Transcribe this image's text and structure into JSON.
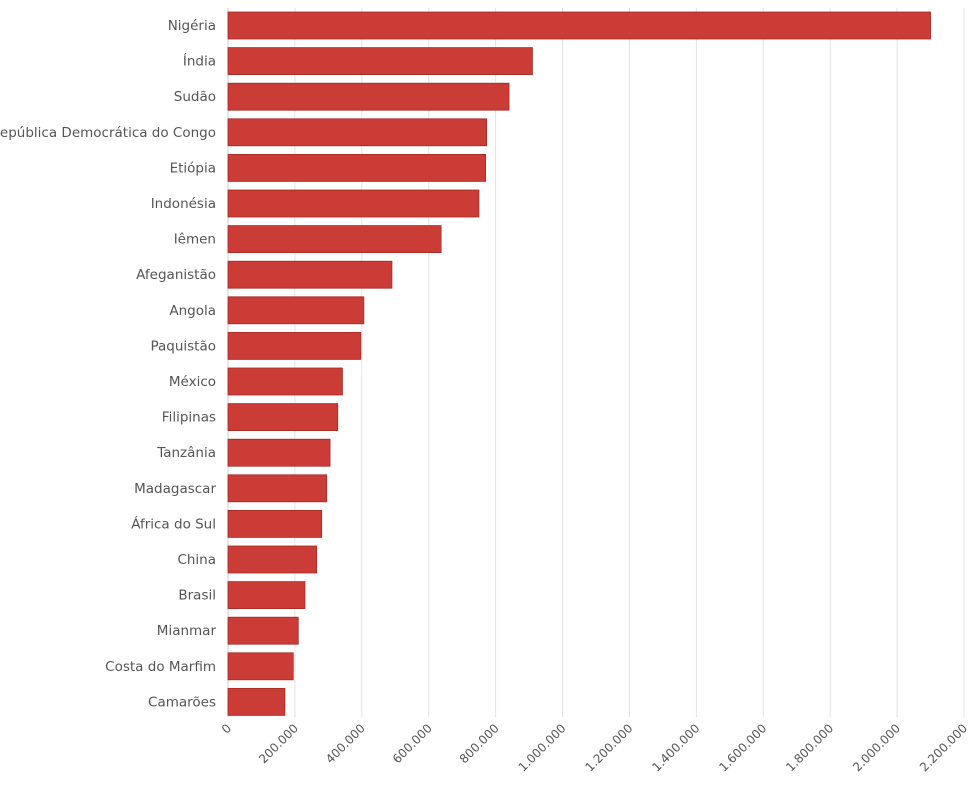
{
  "chart_data": {
    "type": "bar",
    "orientation": "horizontal",
    "title": "",
    "xlabel": "",
    "ylabel": "",
    "categories": [
      "Nigéria",
      "Índia",
      "Sudão",
      "República Democrática do Congo",
      "Etiópia",
      "Indonésia",
      "Iêmen",
      "Afeganistão",
      "Angola",
      "Paquistão",
      "México",
      "Filipinas",
      "Tanzânia",
      "Madagascar",
      "África do Sul",
      "China",
      "Brasil",
      "Mianmar",
      "Costa do Marfim",
      "Camarões"
    ],
    "values": [
      2100000,
      910000,
      840000,
      773000,
      770000,
      750000,
      637000,
      490000,
      406000,
      397000,
      342000,
      328000,
      305000,
      295000,
      280000,
      265000,
      230000,
      210000,
      195000,
      170000
    ],
    "xlim": [
      0,
      2200000
    ],
    "x_ticks": [
      0,
      200000,
      400000,
      600000,
      800000,
      1000000,
      1200000,
      1400000,
      1600000,
      1800000,
      2000000,
      2200000
    ],
    "x_tick_labels": [
      "0",
      "200.000",
      "400.000",
      "600.000",
      "800.000",
      "1.000.000",
      "1.200.000",
      "1.400.000",
      "1.600.000",
      "1.800.000",
      "2.000.000",
      "2.200.000"
    ],
    "grid": true,
    "bar_color": "#cc3c36",
    "bar_edge_color": "#a52a24"
  }
}
